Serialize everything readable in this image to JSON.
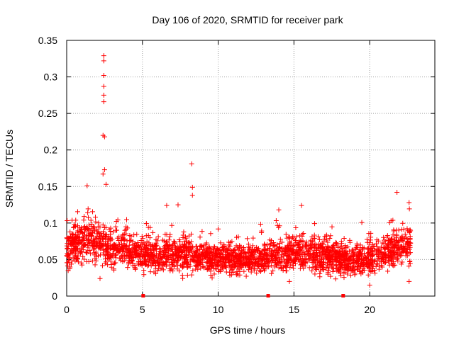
{
  "chart_data": {
    "type": "scatter",
    "title": "Day 106 of 2020, SRMTID for receiver park",
    "xlabel": "GPS time / hours",
    "ylabel": "SRMTID / TECUs",
    "xlim": [
      0,
      24.3
    ],
    "ylim": [
      0,
      0.35
    ],
    "x_ticks": [
      0,
      5,
      10,
      15,
      20
    ],
    "x_tick_labels": [
      "0",
      "5",
      "10",
      "15",
      "20"
    ],
    "y_ticks": [
      0,
      0.05,
      0.1,
      0.15,
      0.2,
      0.25,
      0.3,
      0.35
    ],
    "y_tick_labels": [
      "0",
      "0.05",
      "0.1",
      "0.15",
      "0.2",
      "0.25",
      "0.3",
      "0.35"
    ],
    "grid": true,
    "marker": "+",
    "series_color": "#ff0000",
    "notable_points": [
      {
        "x": 2.45,
        "y": 0.329
      },
      {
        "x": 2.45,
        "y": 0.322
      },
      {
        "x": 2.45,
        "y": 0.302
      },
      {
        "x": 2.45,
        "y": 0.287
      },
      {
        "x": 2.45,
        "y": 0.275
      },
      {
        "x": 2.45,
        "y": 0.266
      },
      {
        "x": 2.4,
        "y": 0.22
      },
      {
        "x": 2.5,
        "y": 0.218
      },
      {
        "x": 2.5,
        "y": 0.173
      },
      {
        "x": 2.4,
        "y": 0.167
      },
      {
        "x": 8.25,
        "y": 0.181
      },
      {
        "x": 8.3,
        "y": 0.149
      },
      {
        "x": 8.3,
        "y": 0.138
      },
      {
        "x": 2.6,
        "y": 0.153
      },
      {
        "x": 1.35,
        "y": 0.151
      },
      {
        "x": 21.8,
        "y": 0.142
      },
      {
        "x": 14.0,
        "y": 0.118
      },
      {
        "x": 15.5,
        "y": 0.124
      },
      {
        "x": 6.6,
        "y": 0.124
      },
      {
        "x": 7.35,
        "y": 0.125
      },
      {
        "x": 22.6,
        "y": 0.128
      },
      {
        "x": 22.6,
        "y": 0.02
      },
      {
        "x": 2.2,
        "y": 0.024
      },
      {
        "x": 0.1,
        "y": 0.035
      },
      {
        "x": 20.0,
        "y": 0.015
      },
      {
        "x": 14.7,
        "y": 0.02
      },
      {
        "x": 9.6,
        "y": 0.025
      }
    ],
    "baseline_markers": [
      {
        "x": 5.05,
        "y": 0
      },
      {
        "x": 13.3,
        "y": 0
      },
      {
        "x": 18.25,
        "y": 0
      }
    ],
    "bulk_series": {
      "x_range": [
        0,
        22.7
      ],
      "point_count": 2700,
      "envelope": [
        {
          "x": 0,
          "low": 0.04,
          "high": 0.09
        },
        {
          "x": 1.5,
          "low": 0.045,
          "high": 0.115
        },
        {
          "x": 3,
          "low": 0.04,
          "high": 0.095
        },
        {
          "x": 5,
          "low": 0.035,
          "high": 0.08
        },
        {
          "x": 7,
          "low": 0.03,
          "high": 0.085
        },
        {
          "x": 9,
          "low": 0.03,
          "high": 0.075
        },
        {
          "x": 11,
          "low": 0.03,
          "high": 0.07
        },
        {
          "x": 13,
          "low": 0.03,
          "high": 0.07
        },
        {
          "x": 15,
          "low": 0.035,
          "high": 0.085
        },
        {
          "x": 17,
          "low": 0.03,
          "high": 0.08
        },
        {
          "x": 19,
          "low": 0.025,
          "high": 0.07
        },
        {
          "x": 20.5,
          "low": 0.03,
          "high": 0.08
        },
        {
          "x": 22,
          "low": 0.04,
          "high": 0.095
        },
        {
          "x": 22.7,
          "low": 0.04,
          "high": 0.1
        }
      ]
    }
  }
}
